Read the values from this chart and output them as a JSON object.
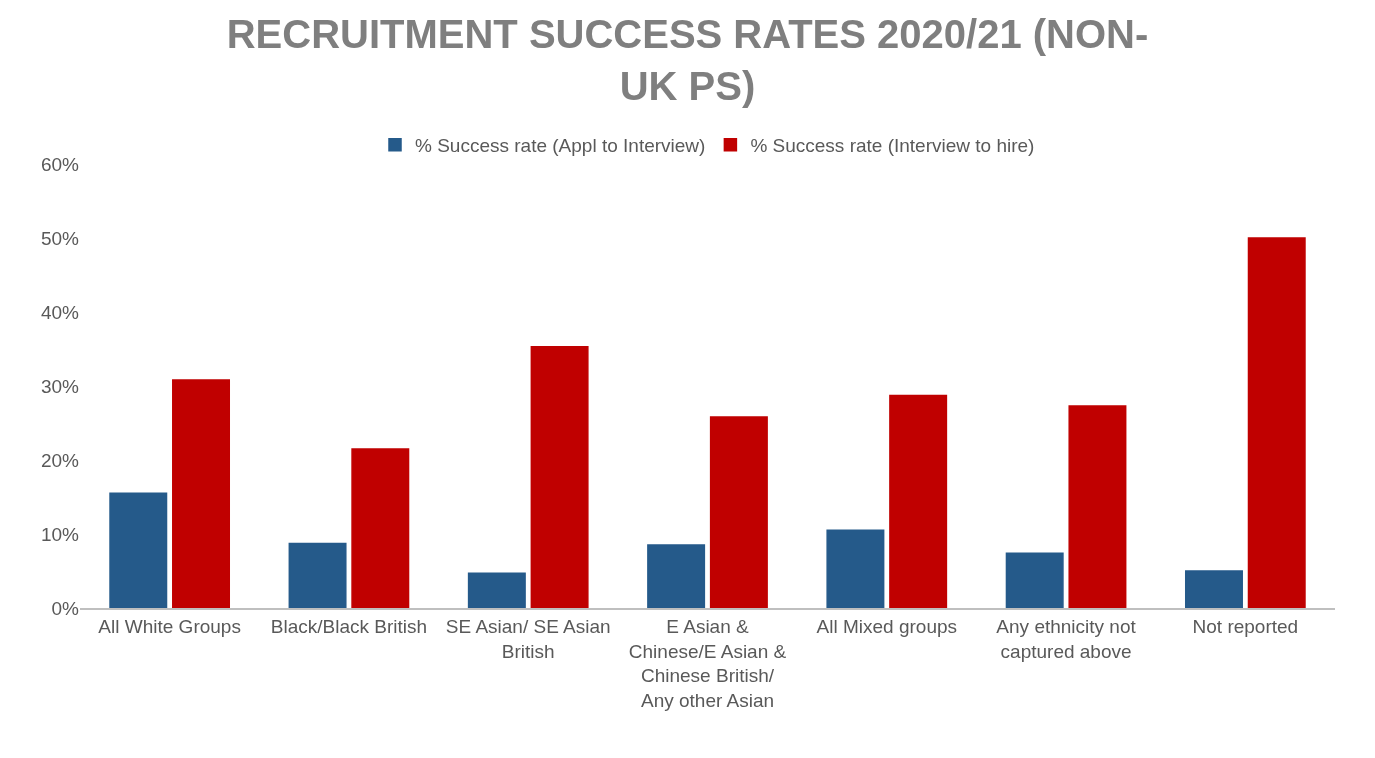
{
  "chart_data": {
    "type": "bar",
    "title": "RECRUITMENT SUCCESS RATES 2020/21 (NON-\nUK PS)",
    "categories": [
      "All White Groups",
      "Black/Black British",
      "SE Asian/ SE Asian\nBritish",
      "E Asian &\nChinese/E Asian &\nChinese British/\nAny other Asian",
      "All Mixed groups",
      "Any ethnicity not\ncaptured above",
      "Not reported"
    ],
    "series": [
      {
        "name": "% Success rate (Appl to Interview)",
        "color": "#255a8a",
        "values": [
          15.5,
          8.7,
          4.7,
          8.5,
          10.5,
          7.4,
          5.0
        ]
      },
      {
        "name": "% Success rate (Interview to hire)",
        "color": "#c00000",
        "values": [
          30.8,
          21.5,
          35.3,
          25.8,
          28.7,
          27.3,
          50.0
        ]
      }
    ],
    "ylim": [
      0,
      60
    ],
    "yticks": [
      {
        "value": 0,
        "label": "0%"
      },
      {
        "value": 10,
        "label": "10%"
      },
      {
        "value": 20,
        "label": "20%"
      },
      {
        "value": 30,
        "label": "30%"
      },
      {
        "value": 40,
        "label": "40%"
      },
      {
        "value": 50,
        "label": "50%"
      },
      {
        "value": 60,
        "label": "60%"
      }
    ],
    "grid": false,
    "legend": "top"
  }
}
